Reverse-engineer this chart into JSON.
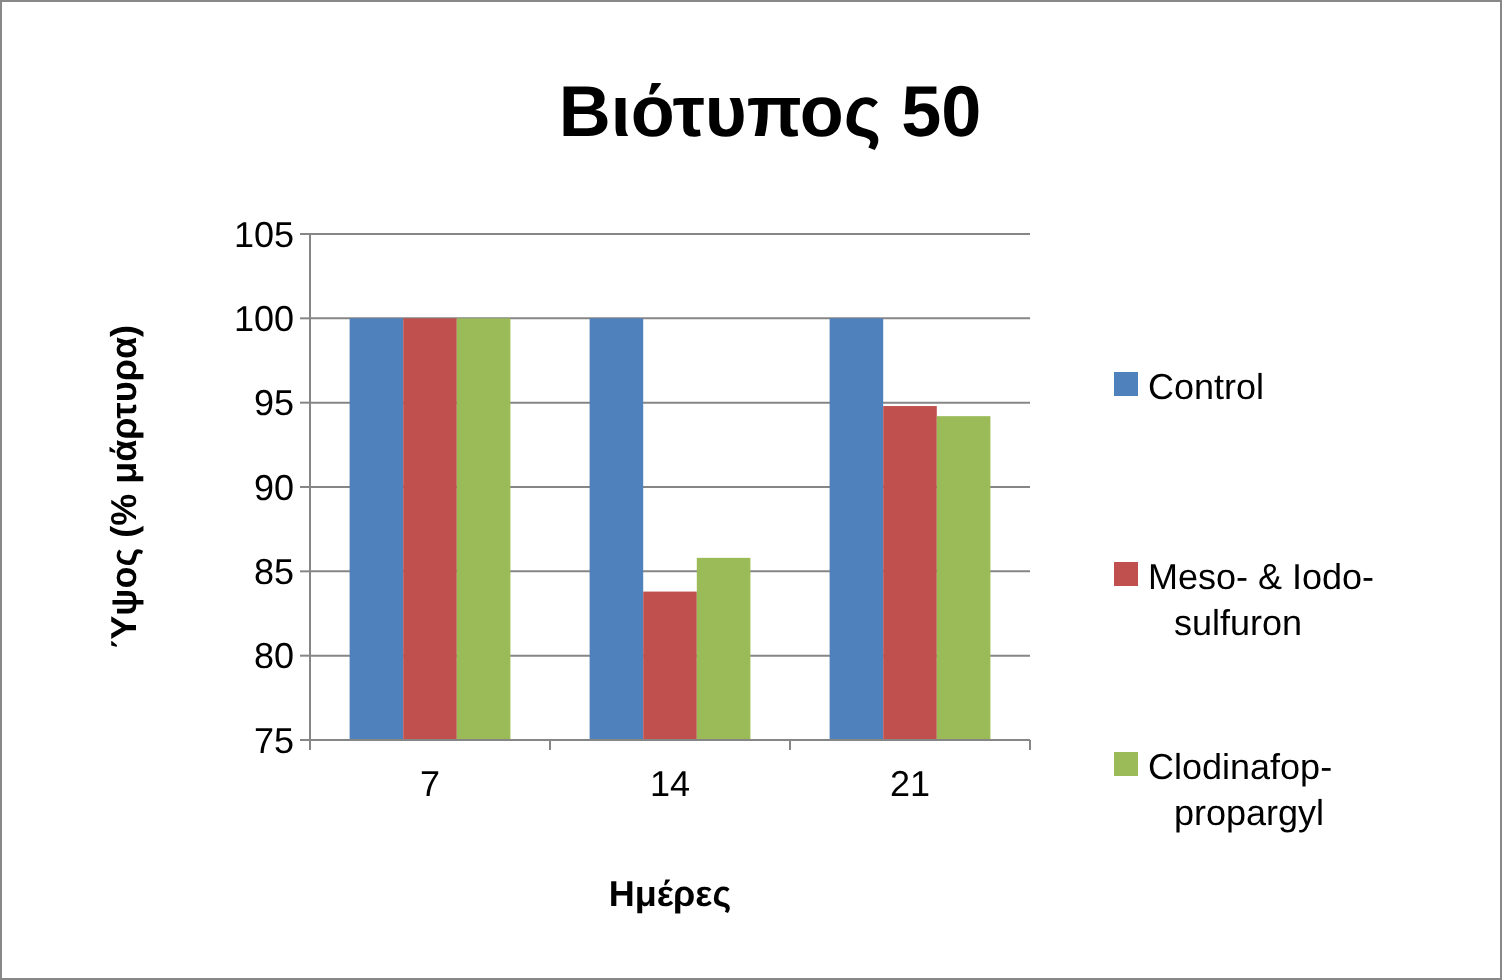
{
  "chart_data": {
    "type": "bar",
    "title": "Βιότυπος 50",
    "xlabel": "Ημέρες",
    "ylabel": "Ύψος (% μάρτυρα)",
    "categories": [
      "7",
      "14",
      "21"
    ],
    "series": [
      {
        "name": "Control",
        "color": "#4f81bd",
        "values": [
          100,
          100,
          100
        ]
      },
      {
        "name": "Meso- & Iodo-sulfuron",
        "color": "#c0504d",
        "values": [
          100,
          83.8,
          94.8
        ]
      },
      {
        "name": "Clodinafop-propargyl",
        "color": "#9bbb59",
        "values": [
          100,
          85.8,
          94.2
        ]
      }
    ],
    "ylim": [
      75,
      105
    ],
    "yticks": [
      75,
      80,
      85,
      90,
      95,
      100,
      105
    ],
    "grid": "y",
    "legend": "right"
  }
}
